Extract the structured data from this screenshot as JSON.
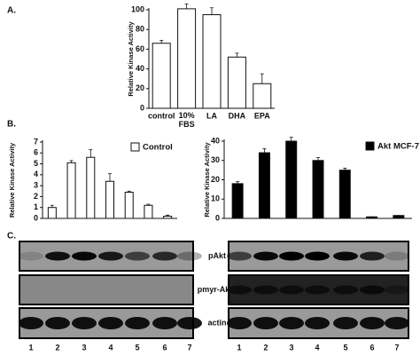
{
  "panel_labels": [
    "A.",
    "B.",
    "C."
  ],
  "chart_data": [
    {
      "type": "bar",
      "ylabel": "Relative Kinase Activity",
      "categories": [
        "control",
        "10% FBS",
        "LA",
        "DHA",
        "EPA"
      ],
      "values": [
        66,
        101,
        95,
        52,
        25
      ],
      "errors": [
        3,
        5,
        7,
        4,
        10
      ],
      "color": "#ffffff",
      "ylim": [
        0,
        100
      ],
      "yticks": [
        0,
        20,
        40,
        60,
        80,
        100
      ]
    },
    {
      "type": "bar",
      "ylabel": "Relative Kinase Activity",
      "categories": [
        null,
        null,
        null,
        null,
        null,
        null,
        null
      ],
      "series": [
        {
          "name": "Control",
          "color": "#ffffff",
          "values": [
            1.0,
            5.1,
            5.6,
            3.4,
            2.4,
            1.2,
            0.2
          ],
          "errors": [
            0.2,
            0.2,
            0.7,
            0.7,
            0.1,
            0.1,
            0.1
          ]
        }
      ],
      "ylim": [
        0,
        7
      ],
      "yticks": [
        0,
        1,
        2,
        3,
        4,
        5,
        6,
        7
      ],
      "legend": "top-right"
    },
    {
      "type": "bar",
      "ylabel": "Relative Kinase Activity",
      "categories": [
        null,
        null,
        null,
        null,
        null,
        null,
        null
      ],
      "series": [
        {
          "name": "Akt MCF-7",
          "color": "#000000",
          "values": [
            18,
            34,
            40,
            30,
            25,
            0.8,
            1.5
          ],
          "errors": [
            1,
            2,
            2,
            1.5,
            1,
            0,
            0
          ]
        }
      ],
      "ylim": [
        0,
        40
      ],
      "yticks": [
        0,
        10,
        20,
        30,
        40
      ],
      "legend": "top-right"
    }
  ],
  "blots": {
    "rows": [
      "pAkt",
      "pmyr-Akt1",
      "actin"
    ],
    "lanes": [
      "1",
      "2",
      "3",
      "4",
      "5",
      "6",
      "7"
    ]
  }
}
